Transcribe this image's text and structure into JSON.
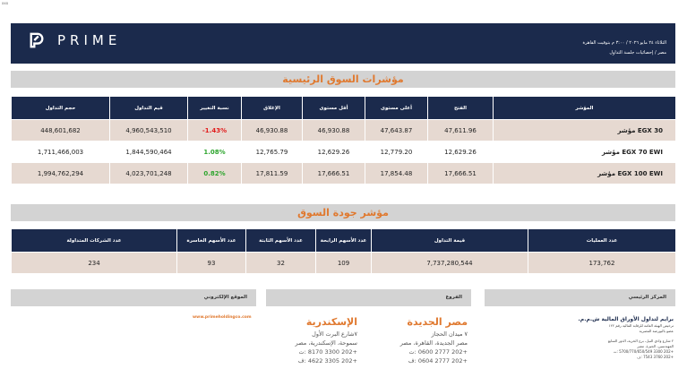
{
  "corner_tag": "xxx",
  "header": {
    "brand": "PRIME",
    "date_line": "الثلاثاء ٢٤ مايو ٢٠٢٦ / ٣:٠٠ م بتوقيت القاهرة",
    "subtitle": "مصر / إحصائيات جلسة التداول"
  },
  "indices": {
    "title": "مؤشرات السوق الرئيسية",
    "headers": [
      "حجم التداول",
      "قيم التداول",
      "نسبة التغيير",
      "الإغلاق",
      "أقل مستوى",
      "أعلى مستوى",
      "الفتح",
      "المؤشر"
    ],
    "rows": [
      {
        "volume": "448,601,682",
        "value": "4,960,543,510",
        "change": "-1.43%",
        "close": "46,930.88",
        "low": "46,930.88",
        "high": "47,643.87",
        "open": "47,611.96",
        "name": "مؤشر EGX 30"
      },
      {
        "volume": "1,711,466,003",
        "value": "1,844,590,464",
        "change": "1.08%",
        "close": "12,765.79",
        "low": "12,629.26",
        "high": "12,779.20",
        "open": "12,629.26",
        "name": "مؤشر EGX 70 EWI"
      },
      {
        "volume": "1,994,762,294",
        "value": "4,023,701,248",
        "change": "0.82%",
        "close": "17,811.59",
        "low": "17,666.51",
        "high": "17,854.48",
        "open": "17,666.51",
        "name": "مؤشر EGX 100 EWI"
      }
    ]
  },
  "quality": {
    "title": "مؤشر جودة السوق",
    "headers": [
      "عدد الشركات المتداولة",
      "عدد الأسهم الخاسرة",
      "عدد الأسهم الثابتة",
      "عدد الأسهم الرابحة",
      "قيمة التداول",
      "عدد العمليات"
    ],
    "row": [
      "234",
      "93",
      "32",
      "109",
      "7,737,280,544",
      "173,762"
    ]
  },
  "footer": {
    "website_label": "الموقع الإلكتروني",
    "branches_label": "الفروع",
    "hq_label": "المركز الرئيسي",
    "url": "www.primeholdingco.com",
    "alex": {
      "city": "الإسكندرية",
      "lines": [
        "٧شارع البرت الأول",
        "سموحة، الإسكندرية، مصر",
        "+202 3300 8170 :ت",
        "+202 3305 4622 :ف"
      ]
    },
    "heliopolis": {
      "city": "مصر الجديدة",
      "lines": [
        "٧ ميدان الحجاز",
        "مصر الجديدة، القاهرة، مصر",
        "+202 2777 0600 :ت",
        "+202 2777 0604 :ف"
      ]
    },
    "hq": {
      "title": "برايم لتداول الأوراق المالية ش.م.م.",
      "lines": [
        "ترخيص الهيئة العامة للرقابة المالية رقم ١٢٢",
        "عضو بالبورصة المصرية",
        "٢ شارع وادي النيل، برج الحرية، الدور السابع",
        "المهندسين، الجيزة، مصر",
        "+202 3300 5700/770/650/549 :ت",
        "+202 3760 7543 :ف"
      ]
    }
  }
}
